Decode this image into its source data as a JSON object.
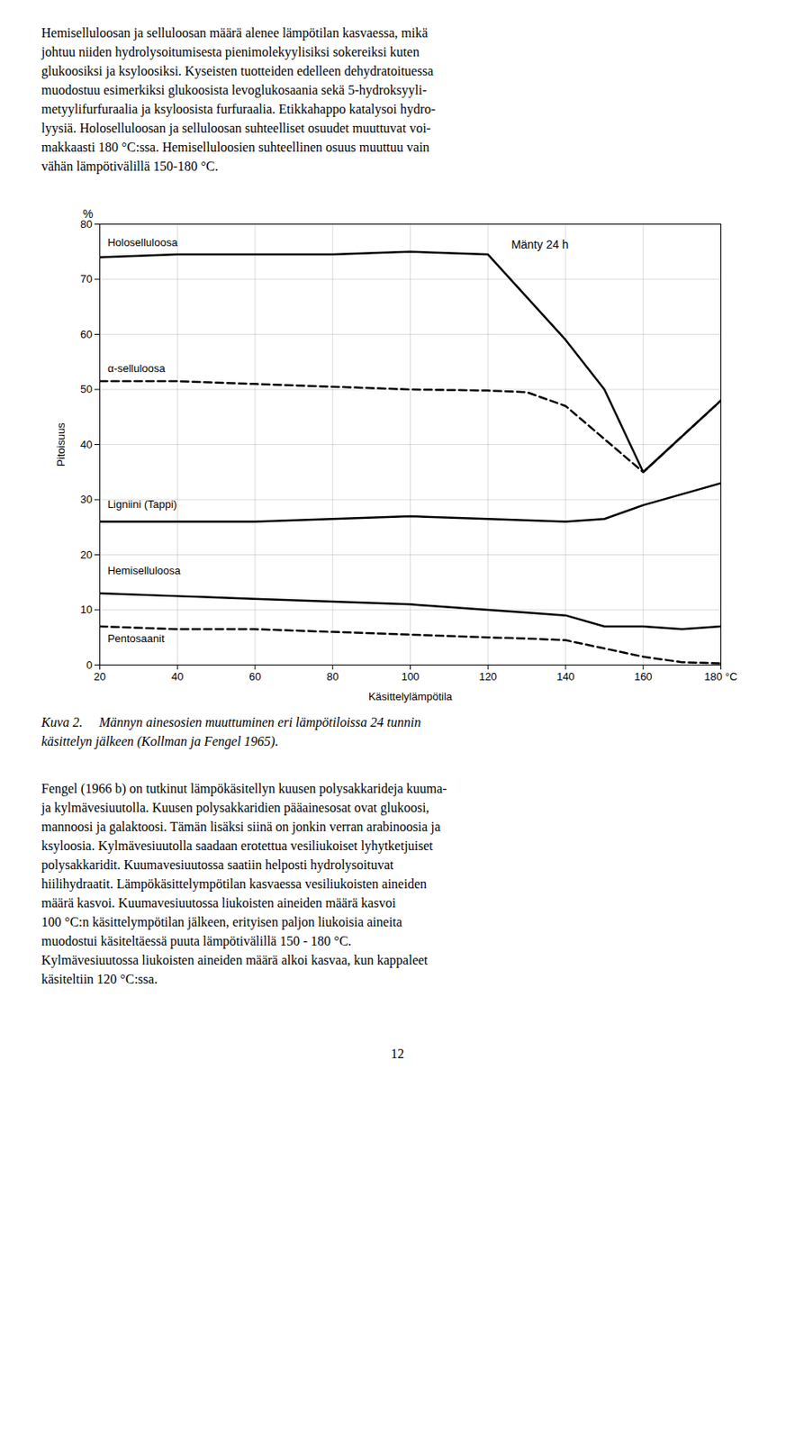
{
  "chart_data": {
    "type": "line",
    "caption": [
      "Kuva 2.  Männyn ainesosien muuttuminen eri lämpötiloissa 24 tunnin",
      "käsittelyn jälkeen (Kollman ja Fengel 1965)."
    ],
    "xlabel": "Käsittelylämpötila",
    "ylabel": "Pitoisuus",
    "ylabel_top": "%",
    "annotation": {
      "text": "Mänty 24 h",
      "x": 126,
      "y": 77
    },
    "xlim": [
      20,
      180
    ],
    "ylim": [
      0,
      80
    ],
    "xticks": [
      20,
      40,
      60,
      80,
      100,
      120,
      140,
      160,
      {
        "value": 180,
        "label": "180 °C"
      }
    ],
    "yticks": [
      0,
      10,
      20,
      30,
      40,
      50,
      60,
      70,
      80
    ],
    "grid": true,
    "series": [
      {
        "name": "Holoselluloosa",
        "color": "#000000",
        "line_style": "solid",
        "x": [
          20,
          40,
          60,
          80,
          100,
          120,
          140,
          150,
          160,
          180
        ],
        "values": [
          74,
          74.5,
          74.5,
          74.5,
          75,
          74.5,
          59,
          50,
          35,
          48
        ],
        "label": {
          "x": 22,
          "y": 76.0
        }
      },
      {
        "name": "α-selluloosa",
        "color": "#000000",
        "line_style": "dashed",
        "x": [
          20,
          40,
          60,
          80,
          100,
          120,
          130,
          140,
          150,
          160,
          180
        ],
        "values": [
          51.5,
          51.5,
          51.0,
          50.5,
          50.0,
          49.8,
          49.5,
          47,
          41,
          35,
          48
        ],
        "label": {
          "x": 22,
          "y": 53.2
        }
      },
      {
        "name": "Ligniini (Tappi)",
        "color": "#000000",
        "line_style": "solid",
        "x": [
          20,
          40,
          60,
          80,
          100,
          120,
          140,
          150,
          160,
          180
        ],
        "values": [
          26.0,
          26.0,
          26.0,
          26.5,
          27.0,
          26.5,
          26.0,
          26.5,
          29.0,
          33.0
        ],
        "label": {
          "x": 22,
          "y": 28.5
        }
      },
      {
        "name": "Hemiselluloosa",
        "color": "#000000",
        "line_style": "solid",
        "x": [
          20,
          40,
          60,
          80,
          100,
          120,
          130,
          140,
          150,
          160,
          170,
          180
        ],
        "values": [
          13.0,
          12.5,
          12.0,
          11.5,
          11.0,
          10.0,
          9.5,
          9.0,
          7.0,
          7.0,
          6.5,
          7.0
        ],
        "label": {
          "x": 22,
          "y": 16.5
        }
      },
      {
        "name": "Pentosaanit",
        "color": "#000000",
        "line_style": "dashed",
        "x": [
          20,
          40,
          60,
          80,
          100,
          120,
          130,
          140,
          150,
          160,
          170,
          180
        ],
        "values": [
          7.0,
          6.5,
          6.5,
          6.0,
          5.5,
          5.0,
          4.8,
          4.5,
          3.0,
          1.5,
          0.5,
          0.3
        ],
        "label": {
          "x": 22,
          "y": 4.2
        }
      }
    ],
    "text_above": [
      "Hemiselluloosan ja selluloosan määrä alenee lämpötilan kasvaessa, mikä",
      "johtuu niiden hydrolysoitumisesta pienimolekyylisiksi sokereiksi kuten",
      "glukoosiksi ja ksyloosiksi. Kyseisten tuotteiden edelleen dehydratoituessa",
      "muodostuu esimerkiksi glukoosista levoglukosaania sekä 5-hydroksyyli-",
      "metyylifurfuraalia ja ksyloosista furfuraalia. Etikkahappo katalysoi hydro-",
      "lyysiä. Holoselluloosan ja selluloosan suhteelliset osuudet muuttuvat voi-",
      "makkaasti 180 °C:ssa. Hemiselluloosien suhteellinen osuus muuttuu vain",
      "vähän lämpötivälillä 150-180 °C."
    ],
    "text_below": [
      "Fengel (1966 b) on tutkinut lämpökäsitellyn kuusen polysakkarideja kuuma-",
      "ja kylmävesiuutolla. Kuusen polysakkaridien pääainesosat ovat glukoosi,",
      "mannoosi ja galaktoosi. Tämän lisäksi siinä on jonkin verran arabinoosia ja",
      "ksyloosia. Kylmävesiuutolla saadaan erotettua vesiliukoiset lyhytketjuiset",
      "polysakkaridit. Kuumavesiuutossa saatiin helposti hydrolysoituvat",
      "hiilihydraatit. Lämpökäsittelympötilan kasvaessa vesiliukoisten aineiden",
      "määrä kasvoi. Kuumavesiuutossa liukoisten aineiden määrä kasvoi",
      "100 °C:n käsittelympötilan jälkeen, erityisen paljon liukoisia aineita",
      "muodostui käsiteltäessä puuta lämpötivälillä 150 - 180 °C.",
      "Kylmävesiuutossa liukoisten aineiden määrä alkoi kasvaa, kun kappaleet",
      "käsiteltiin 120 °C:ssa."
    ],
    "page_number": "12"
  }
}
